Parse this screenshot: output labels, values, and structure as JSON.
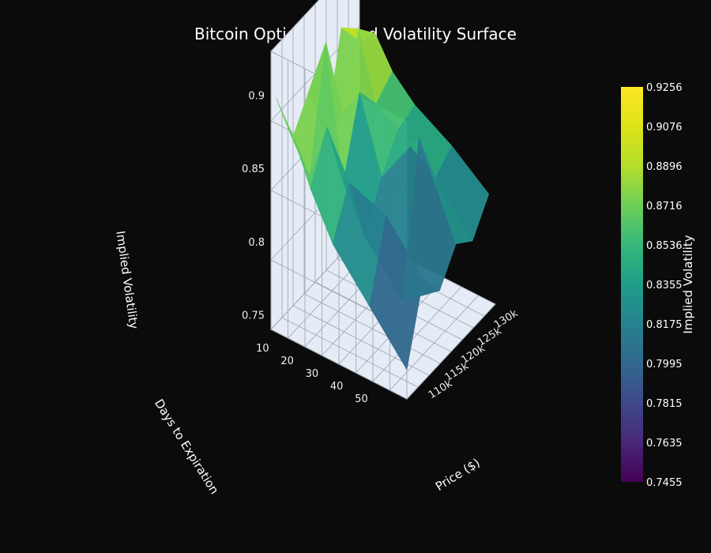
{
  "chart_data": {
    "type": "surface3d",
    "title": "Bitcoin Options Implied Volatility Surface",
    "xlabel": "Price ($)",
    "ylabel": "Days to Expiration",
    "zlabel": "Implied Volatility",
    "x_ticks": [
      "110k",
      "115k",
      "120k",
      "125k",
      "130k"
    ],
    "y_ticks": [
      "10",
      "20",
      "30",
      "40",
      "50"
    ],
    "z_ticks": [
      "0.75",
      "0.8",
      "0.85",
      "0.9"
    ],
    "x_range": [
      105000,
      132000
    ],
    "y_range": [
      5,
      60
    ],
    "z_range": [
      0.74,
      0.93
    ],
    "x": [
      105000,
      110000,
      115000,
      120000,
      125000,
      130000
    ],
    "y": [
      7,
      14,
      21,
      30,
      45,
      60
    ],
    "z": [
      [
        0.9,
        0.86,
        0.88,
        0.835,
        0.9,
        0.88
      ],
      [
        0.88,
        0.84,
        0.92,
        0.86,
        0.905,
        0.89
      ],
      [
        0.85,
        0.88,
        0.83,
        0.88,
        0.86,
        0.87
      ],
      [
        0.82,
        0.85,
        0.8,
        0.83,
        0.85,
        0.855
      ],
      [
        0.79,
        0.84,
        0.77,
        0.87,
        0.83,
        0.84
      ],
      [
        0.76,
        0.81,
        0.79,
        0.81,
        0.8,
        0.82
      ]
    ],
    "colorscale": "Viridis",
    "colorbar": {
      "title": "Implied Volatility",
      "min": 0.7455,
      "max": 0.9256,
      "ticks": [
        "0.9256",
        "0.9076",
        "0.8896",
        "0.8716",
        "0.8536",
        "0.8355",
        "0.8175",
        "0.7995",
        "0.7815",
        "0.7635",
        "0.7455"
      ]
    },
    "background": "#0b0b0b",
    "scene_background": "#e5ecf6",
    "grid": true
  }
}
